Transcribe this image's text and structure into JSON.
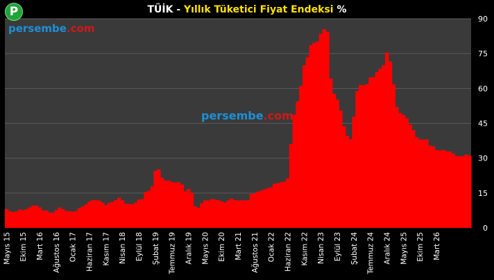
{
  "header": {
    "logo_letter": "P",
    "title_prefix": "TÜİK - ",
    "title_main": "Yıllık Tüketici Fiyat Endeksi",
    "title_suffix": " %"
  },
  "watermark": {
    "main": "persembe",
    "dot": ".",
    "tld": "com"
  },
  "colors": {
    "bar": "#ff0000",
    "plot_bg": "#3a3a3a",
    "grid": "#5a5a5a",
    "page_bg": "#000000",
    "title_accent": "#ffe100"
  },
  "chart_data": {
    "type": "bar",
    "title": "TÜİK - Yıllık Tüketici Fiyat Endeksi %",
    "ylim": [
      0,
      90
    ],
    "y_ticks": [
      0,
      15,
      30,
      45,
      60,
      75,
      90
    ],
    "y_axis_side": "right",
    "grid": true,
    "x_tick_labels": [
      "Mayıs 15",
      "Ekim 15",
      "Mart 16",
      "Ağustos 16",
      "Ocak 17",
      "Haziran 17",
      "Kasım 17",
      "Nisan 18",
      "Eylül 18",
      "Şubat 19",
      "Temmuz 19",
      "Aralık 19",
      "Mayıs 20",
      "Ekim 20",
      "Mart 21",
      "Ağustos 21",
      "Ocak 22",
      "Haziran 22",
      "Kasım 22",
      "Nisan 23",
      "Eylül 23",
      "Şubat 24",
      "Temmuz 24",
      "Aralık 24",
      "Mayıs 25",
      "Ekim 25",
      "Mart 26"
    ],
    "x_tick_step": 5,
    "series": [
      {
        "values": [
          8.1,
          7.2,
          6.8,
          7.1,
          7.9,
          7.6,
          8.1,
          8.8,
          9.6,
          9.6,
          8.8,
          7.5,
          7.5,
          6.6,
          6.6,
          7.6,
          8.8,
          8.1,
          7.3,
          7.2,
          7.0,
          7.2,
          8.5,
          9.2,
          10.1,
          11.3,
          11.9,
          11.9,
          11.7,
          10.9,
          9.8,
          10.7,
          11.2,
          11.9,
          13.0,
          11.9,
          10.4,
          10.3,
          10.2,
          10.9,
          12.2,
          12.4,
          15.4,
          15.9,
          17.9,
          24.5,
          25.2,
          21.6,
          20.3,
          20.4,
          19.7,
          19.5,
          19.7,
          18.7,
          15.7,
          16.7,
          15.0,
          9.3,
          8.6,
          10.6,
          11.8,
          11.8,
          12.4,
          12.2,
          11.9,
          11.4,
          10.9,
          11.8,
          12.6,
          11.9,
          11.8,
          11.9,
          11.8,
          11.9,
          14.6,
          14.9,
          15.6,
          16.0,
          16.6,
          17.1,
          17.5,
          19.0,
          19.3,
          19.6,
          19.9,
          21.3,
          36.1,
          48.7,
          54.4,
          61.1,
          70.0,
          73.5,
          78.6,
          79.6,
          80.2,
          83.5,
          85.5,
          84.4,
          64.3,
          57.7,
          55.2,
          50.5,
          43.7,
          39.6,
          38.2,
          47.8,
          58.9,
          61.5,
          61.4,
          61.9,
          64.8,
          64.9,
          67.1,
          68.5,
          70.0,
          75.5,
          71.6,
          61.8,
          52.0,
          49.4,
          48.6,
          47.1,
          44.4,
          42.1,
          39.0,
          38.1,
          37.9,
          38.1,
          35.4,
          35.1,
          33.5,
          33.3,
          33.5,
          33.0,
          32.9,
          32.0,
          30.9,
          30.9,
          30.9,
          31.5,
          31.0
        ]
      }
    ]
  }
}
